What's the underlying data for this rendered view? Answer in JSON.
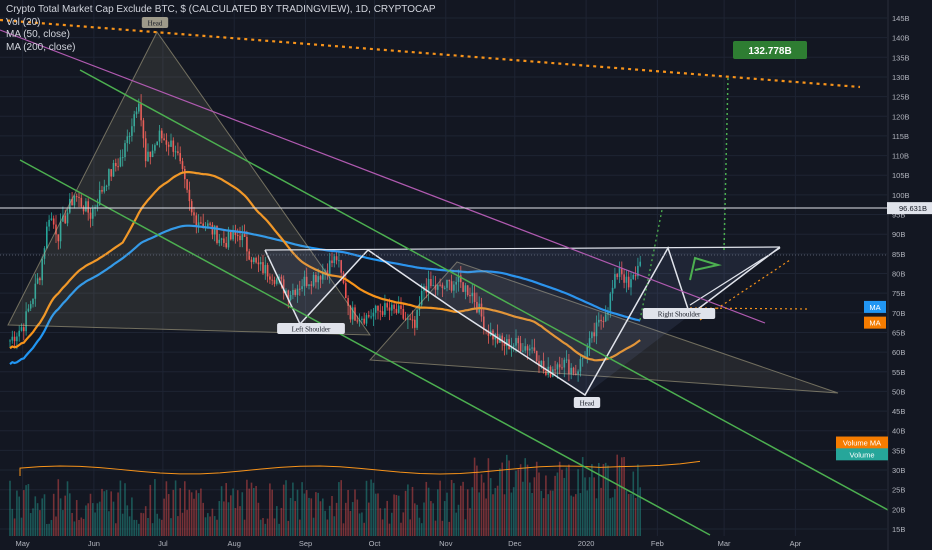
{
  "legend": {
    "title": "Crypto Total Market Cap Exclude BTC, $ (CALCULATED BY TRADINGVIEW), 1D, CRYPTOCAP",
    "vol": "Vol (20)",
    "ma50": "MA (50, close)",
    "ma200": "MA (200, close)"
  },
  "colors": {
    "background": "#131722",
    "up": "#26a69a",
    "down": "#ef5350",
    "ma50": "#f7931a",
    "ma200": "#2196f3",
    "green_line": "#4caf50",
    "magenta_line": "#b05ab0",
    "orange_dotted": "#f7931a",
    "white_line": "#e0e3eb"
  },
  "chart_data": {
    "type": "candlestick",
    "y_unit": "B",
    "ylim": [
      15,
      148
    ],
    "y_ticks": [
      "15B",
      "20B",
      "25B",
      "30B",
      "35B",
      "40B",
      "45B",
      "50B",
      "55B",
      "60B",
      "65B",
      "70B",
      "75B",
      "80B",
      "85B",
      "90B",
      "95B",
      "100B",
      "105B",
      "110B",
      "115B",
      "120B",
      "125B",
      "130B",
      "135B",
      "140B",
      "145B"
    ],
    "x_ticks": [
      "May",
      "Jun",
      "Jul",
      "Aug",
      "Sep",
      "Oct",
      "Nov",
      "Dec",
      "2020",
      "Feb",
      "Mar",
      "Apr"
    ],
    "x_range": [
      "2019-04-29",
      "2020-04-27"
    ],
    "price_markers": [
      {
        "label": "96.631B",
        "value": 96.63,
        "style": "white"
      },
      {
        "label": "MA",
        "value": 71.5,
        "style": "blue"
      },
      {
        "label": "MA",
        "value": 67.5,
        "style": "orange"
      },
      {
        "label": "Volume MA",
        "value": 37,
        "style": "orange"
      },
      {
        "label": "Volume",
        "value": 34,
        "style": "green"
      }
    ],
    "closes_approx": [
      {
        "date": "2019-04-29",
        "v": 63
      },
      {
        "date": "2019-05-05",
        "v": 67
      },
      {
        "date": "2019-05-12",
        "v": 80
      },
      {
        "date": "2019-05-16",
        "v": 95
      },
      {
        "date": "2019-05-20",
        "v": 90
      },
      {
        "date": "2019-05-27",
        "v": 100
      },
      {
        "date": "2019-06-03",
        "v": 95
      },
      {
        "date": "2019-06-10",
        "v": 104
      },
      {
        "date": "2019-06-17",
        "v": 110
      },
      {
        "date": "2019-06-24",
        "v": 125
      },
      {
        "date": "2019-06-27",
        "v": 108
      },
      {
        "date": "2019-07-03",
        "v": 115
      },
      {
        "date": "2019-07-10",
        "v": 112
      },
      {
        "date": "2019-07-17",
        "v": 95
      },
      {
        "date": "2019-07-24",
        "v": 92
      },
      {
        "date": "2019-07-31",
        "v": 88
      },
      {
        "date": "2019-08-07",
        "v": 90
      },
      {
        "date": "2019-08-14",
        "v": 82
      },
      {
        "date": "2019-08-21",
        "v": 80
      },
      {
        "date": "2019-08-28",
        "v": 75
      },
      {
        "date": "2019-09-04",
        "v": 78
      },
      {
        "date": "2019-09-11",
        "v": 80
      },
      {
        "date": "2019-09-18",
        "v": 84
      },
      {
        "date": "2019-09-24",
        "v": 70
      },
      {
        "date": "2019-10-01",
        "v": 69
      },
      {
        "date": "2019-10-08",
        "v": 71
      },
      {
        "date": "2019-10-15",
        "v": 70
      },
      {
        "date": "2019-10-22",
        "v": 66
      },
      {
        "date": "2019-10-26",
        "v": 77
      },
      {
        "date": "2019-11-02",
        "v": 76
      },
      {
        "date": "2019-11-09",
        "v": 78
      },
      {
        "date": "2019-11-16",
        "v": 75
      },
      {
        "date": "2019-11-22",
        "v": 66
      },
      {
        "date": "2019-11-29",
        "v": 62
      },
      {
        "date": "2019-12-06",
        "v": 62
      },
      {
        "date": "2019-12-13",
        "v": 61
      },
      {
        "date": "2019-12-18",
        "v": 54
      },
      {
        "date": "2019-12-24",
        "v": 58
      },
      {
        "date": "2019-12-31",
        "v": 55
      },
      {
        "date": "2020-01-06",
        "v": 62
      },
      {
        "date": "2020-01-14",
        "v": 72
      },
      {
        "date": "2020-01-19",
        "v": 82
      },
      {
        "date": "2020-01-23",
        "v": 76
      },
      {
        "date": "2020-01-28",
        "v": 83
      }
    ]
  },
  "annotations": {
    "head_top": "Head",
    "left_shoulder": "Left Shoulder",
    "head_bottom": "Head",
    "right_shoulder": "Right Shoulder",
    "target": "132.778B"
  }
}
